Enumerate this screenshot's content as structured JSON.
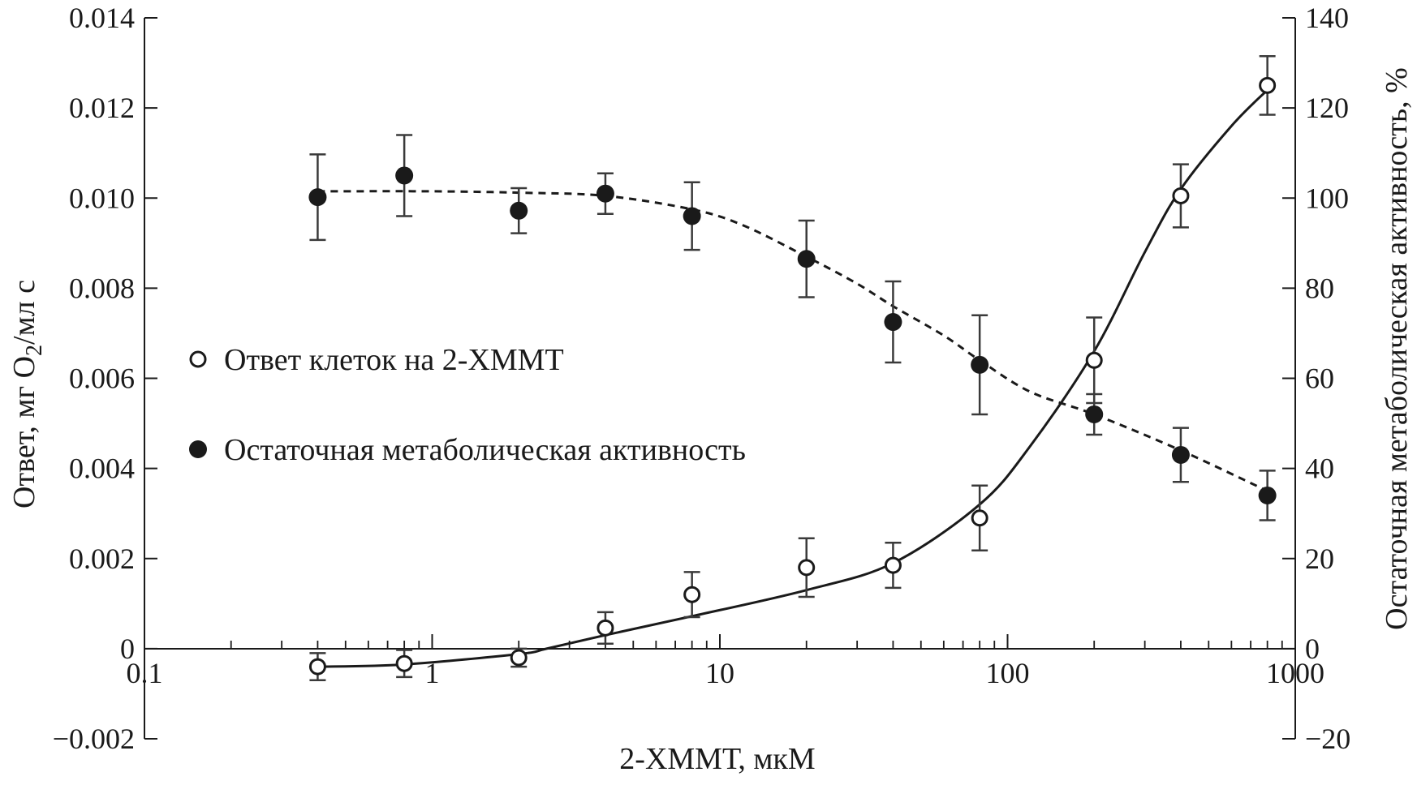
{
  "chart_data": {
    "type": "scatter",
    "xlabel": "2-ХММТ, мкМ",
    "ylabel_left": "Ответ, мг O",
    "ylabel_left_subscript": "2",
    "ylabel_left_suffix": "/мл с",
    "ylabel_right": "Остаточная метаболическая активность, %",
    "x_scale": "log",
    "xlim": [
      0.1,
      1000
    ],
    "x_ticks": [
      0.1,
      1,
      10,
      100,
      1000
    ],
    "x_tick_labels": [
      "0.1",
      "1",
      "10",
      "100",
      "1000"
    ],
    "ylim_left": [
      -0.002,
      0.014
    ],
    "y_left_ticks": [
      -0.002,
      0,
      0.002,
      0.004,
      0.006,
      0.008,
      0.01,
      0.012,
      0.014
    ],
    "y_left_tick_labels": [
      "−0.002",
      "0",
      "0.002",
      "0.004",
      "0.006",
      "0.008",
      "0.010",
      "0.012",
      "0.014"
    ],
    "ylim_right": [
      -20,
      140
    ],
    "y_right_ticks": [
      -20,
      0,
      20,
      40,
      60,
      80,
      100,
      120,
      140
    ],
    "y_right_tick_labels": [
      "−20",
      "0",
      "20",
      "40",
      "60",
      "80",
      "100",
      "120",
      "140"
    ],
    "grid": false,
    "legend_position": "center-left",
    "series": [
      {
        "name": "Ответ клеток на 2-ХММТ",
        "axis": "left",
        "marker": "open-circle",
        "x": [
          0.4,
          0.8,
          2,
          4,
          8,
          20,
          40,
          80,
          200,
          400,
          800
        ],
        "y": [
          -0.0004,
          -0.00033,
          -0.0002,
          0.00046,
          0.0012,
          0.0018,
          0.00185,
          0.0029,
          0.0064,
          0.01005,
          0.0125
        ],
        "error": [
          0.0003,
          0.0003,
          0.0002,
          0.00035,
          0.0005,
          0.00065,
          0.0005,
          0.00072,
          0.00095,
          0.0007,
          0.00065
        ]
      },
      {
        "name": "Остаточная метаболическая активность",
        "axis": "right",
        "marker": "filled-circle",
        "x": [
          0.4,
          0.8,
          2,
          4,
          8,
          20,
          40,
          80,
          200,
          400,
          800
        ],
        "y": [
          100.2,
          105,
          97.2,
          101,
          96,
          86.5,
          72.5,
          63,
          52,
          43,
          34
        ],
        "error": [
          9.5,
          9,
          5,
          4.5,
          7.5,
          8.5,
          9,
          11,
          4.5,
          6,
          5.5
        ]
      }
    ],
    "fit_curves": [
      {
        "series": "Ответ клеток на 2-ХММТ",
        "style": "solid",
        "axis": "left",
        "x": [
          0.4,
          0.8,
          2,
          2.5,
          4,
          8,
          20,
          40,
          80,
          120,
          200,
          300,
          400,
          600,
          800
        ],
        "y": [
          -0.0004,
          -0.00035,
          -0.00012,
          0,
          0.0003,
          0.00072,
          0.0013,
          0.0019,
          0.0032,
          0.0045,
          0.0066,
          0.0088,
          0.0102,
          0.0116,
          0.0124
        ]
      },
      {
        "series": "Остаточная метаболическая активность",
        "style": "dashed",
        "axis": "right",
        "x": [
          0.4,
          1,
          2,
          4,
          8,
          12,
          20,
          30,
          40,
          60,
          80,
          120,
          200,
          400,
          800
        ],
        "y": [
          101.5,
          101.5,
          101.2,
          100.5,
          97.5,
          94,
          87,
          81,
          76,
          69.5,
          64,
          57,
          52,
          44,
          35
        ]
      }
    ]
  }
}
